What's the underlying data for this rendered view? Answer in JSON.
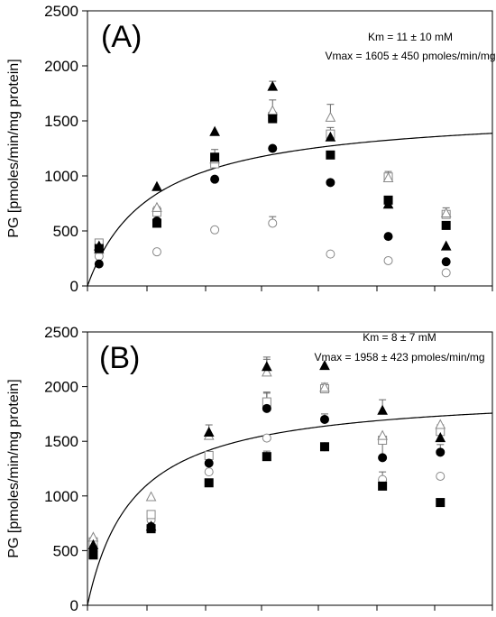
{
  "chart_data": [
    {
      "type": "scatter",
      "panel_label": "(A)",
      "ylabel": "PG [pmoles/min/mg protein]",
      "xlabel": "",
      "ylim": [
        0,
        2500
      ],
      "yticks": [
        "0",
        "500",
        "1000",
        "1500",
        "2000",
        "2500"
      ],
      "xlim": [
        0,
        7
      ],
      "annotations": [
        "Km = 11 ± 10 mM",
        "Vmax = 1605 ± 450 pmoles/min/mg"
      ],
      "fit": {
        "model": "michaelis-menten",
        "Km": 11,
        "Vmax": 1605,
        "x_concentration_per_unit": 10
      },
      "series": [
        {
          "marker": "filled-triangle",
          "points": [
            [
              0.2,
              360
            ],
            [
              1.2,
              900
            ],
            [
              2.2,
              1400
            ],
            [
              3.2,
              1810
            ],
            [
              4.2,
              1350
            ],
            [
              5.2,
              740
            ],
            [
              6.2,
              360
            ]
          ],
          "err": [
            [
              3.2,
              50
            ],
            [
              5.2,
              40
            ]
          ]
        },
        {
          "marker": "open-triangle",
          "points": [
            [
              0.2,
              330
            ],
            [
              1.2,
              710
            ],
            [
              2.2,
              1150
            ],
            [
              3.2,
              1590
            ],
            [
              4.2,
              1530
            ],
            [
              5.2,
              980
            ],
            [
              6.2,
              660
            ]
          ],
          "err": [
            [
              3.2,
              100
            ],
            [
              4.2,
              120
            ]
          ]
        },
        {
          "marker": "filled-square",
          "points": [
            [
              0.2,
              340
            ],
            [
              1.2,
              570
            ],
            [
              2.2,
              1170
            ],
            [
              3.2,
              1520
            ],
            [
              4.2,
              1190
            ],
            [
              5.2,
              780
            ],
            [
              6.2,
              550
            ]
          ],
          "err": [
            [
              2.2,
              70
            ],
            [
              3.2,
              60
            ]
          ]
        },
        {
          "marker": "open-square",
          "points": [
            [
              0.2,
              390
            ],
            [
              1.2,
              670
            ],
            [
              2.2,
              1110
            ],
            [
              3.2,
              1540
            ],
            [
              4.2,
              1380
            ],
            [
              5.2,
              990
            ],
            [
              6.2,
              650
            ]
          ],
          "err": [
            [
              1.2,
              50
            ],
            [
              4.2,
              60
            ],
            [
              5.2,
              50
            ],
            [
              6.2,
              60
            ]
          ]
        },
        {
          "marker": "filled-circle",
          "points": [
            [
              0.2,
              200
            ],
            [
              1.2,
              590
            ],
            [
              2.2,
              970
            ],
            [
              3.2,
              1250
            ],
            [
              4.2,
              940
            ],
            [
              5.2,
              450
            ],
            [
              6.2,
              220
            ]
          ],
          "err": []
        },
        {
          "marker": "open-circle",
          "points": [
            [
              0.2,
              270
            ],
            [
              1.2,
              310
            ],
            [
              2.2,
              510
            ],
            [
              3.2,
              570
            ],
            [
              4.2,
              290
            ],
            [
              5.2,
              230
            ],
            [
              6.2,
              120
            ]
          ],
          "err": [
            [
              3.2,
              60
            ]
          ]
        }
      ]
    },
    {
      "type": "scatter",
      "panel_label": "(B)",
      "ylabel": "PG [pmoles/min/mg protein]",
      "xlabel": "",
      "ylim": [
        0,
        2500
      ],
      "yticks": [
        "0",
        "500",
        "1000",
        "1500",
        "2000",
        "2500"
      ],
      "xlim": [
        0,
        7
      ],
      "annotations": [
        "Km = 8 ± 7 mM",
        "Vmax = 1958 ± 423 pmoles/min/mg"
      ],
      "fit": {
        "model": "michaelis-menten",
        "Km": 8,
        "Vmax": 1958,
        "x_concentration_per_unit": 10
      },
      "series": [
        {
          "marker": "filled-triangle",
          "points": [
            [
              0.1,
              550
            ],
            [
              1.1,
              720
            ],
            [
              2.1,
              1580
            ],
            [
              3.1,
              2180
            ],
            [
              4.1,
              2190
            ],
            [
              5.1,
              1780
            ],
            [
              6.1,
              1530
            ]
          ],
          "err": [
            [
              2.1,
              70
            ],
            [
              3.1,
              90
            ],
            [
              5.1,
              100
            ]
          ]
        },
        {
          "marker": "open-triangle",
          "points": [
            [
              0.1,
              620
            ],
            [
              1.1,
              990
            ],
            [
              2.1,
              1550
            ],
            [
              3.1,
              2130
            ],
            [
              4.1,
              1990
            ],
            [
              5.1,
              1550
            ],
            [
              6.1,
              1650
            ]
          ],
          "err": [
            [
              3.1,
              120
            ]
          ]
        },
        {
          "marker": "filled-square",
          "points": [
            [
              0.1,
              460
            ],
            [
              1.1,
              700
            ],
            [
              2.1,
              1120
            ],
            [
              3.1,
              1360
            ],
            [
              4.1,
              1450
            ],
            [
              5.1,
              1090
            ],
            [
              6.1,
              940
            ]
          ],
          "err": [
            [
              3.1,
              50
            ],
            [
              5.1,
              130
            ]
          ]
        },
        {
          "marker": "open-square",
          "points": [
            [
              0.1,
              580
            ],
            [
              1.1,
              830
            ],
            [
              2.1,
              1370
            ],
            [
              3.1,
              1860
            ],
            [
              4.1,
              1980
            ],
            [
              5.1,
              1510
            ],
            [
              6.1,
              1590
            ]
          ],
          "err": [
            [
              3.1,
              80
            ],
            [
              4.1,
              50
            ],
            [
              6.1,
              60
            ]
          ]
        },
        {
          "marker": "filled-circle",
          "points": [
            [
              0.1,
              500
            ],
            [
              1.1,
              720
            ],
            [
              2.1,
              1300
            ],
            [
              3.1,
              1800
            ],
            [
              4.1,
              1700
            ],
            [
              5.1,
              1350
            ],
            [
              6.1,
              1400
            ]
          ],
          "err": [
            [
              3.1,
              150
            ],
            [
              4.1,
              50
            ],
            [
              5.1,
              130
            ],
            [
              6.1,
              70
            ]
          ]
        },
        {
          "marker": "open-circle",
          "points": [
            [
              0.1,
              530
            ],
            [
              1.1,
              780
            ],
            [
              2.1,
              1220
            ],
            [
              3.1,
              1530
            ],
            [
              4.1,
              1450
            ],
            [
              5.1,
              1150
            ],
            [
              6.1,
              1180
            ]
          ],
          "err": []
        }
      ]
    }
  ]
}
